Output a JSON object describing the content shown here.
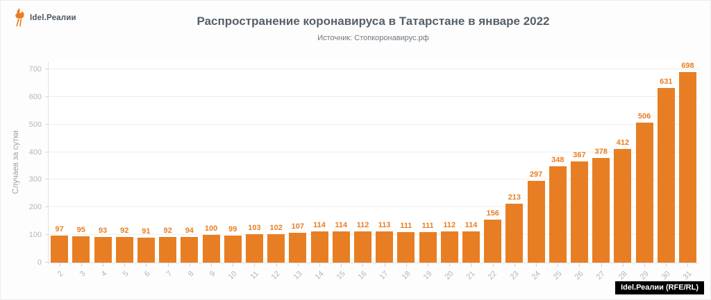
{
  "logo": {
    "text": "Idel.Реалии"
  },
  "header": {
    "title": "Распространение коронавируса в Татарстане в январе 2022",
    "subtitle": "Источник: Стопкоронавирус.рф"
  },
  "chart_data": {
    "type": "bar",
    "categories": [
      "2",
      "3",
      "4",
      "5",
      "6",
      "7",
      "8",
      "9",
      "10",
      "11",
      "12",
      "13",
      "14",
      "15",
      "16",
      "17",
      "18",
      "19",
      "20",
      "21",
      "22",
      "23",
      "24",
      "25",
      "26",
      "27",
      "28",
      "29",
      "30",
      "31"
    ],
    "values": [
      97,
      95,
      93,
      92,
      91,
      92,
      94,
      100,
      99,
      103,
      102,
      107,
      114,
      114,
      112,
      113,
      111,
      111,
      112,
      114,
      156,
      213,
      297,
      348,
      367,
      378,
      412,
      506,
      631,
      698
    ],
    "title": "Распространение коронавируса в Татарстане в январе 2022",
    "subtitle": "Источник: Стопкоронавирус.рф",
    "xlabel": "",
    "ylabel": "Случаев за сутки",
    "ylim": [
      0,
      730
    ],
    "yticks": [
      0,
      100,
      200,
      300,
      400,
      500,
      600,
      700
    ],
    "grid": true,
    "legend": false,
    "bar_color": "#e87e23",
    "value_label_color": "#e87e23",
    "title_color": "#566069",
    "axis_label_color": "#b2b5b9"
  },
  "watermark": {
    "label": "Idel.Реалии (RFE/RL)"
  }
}
